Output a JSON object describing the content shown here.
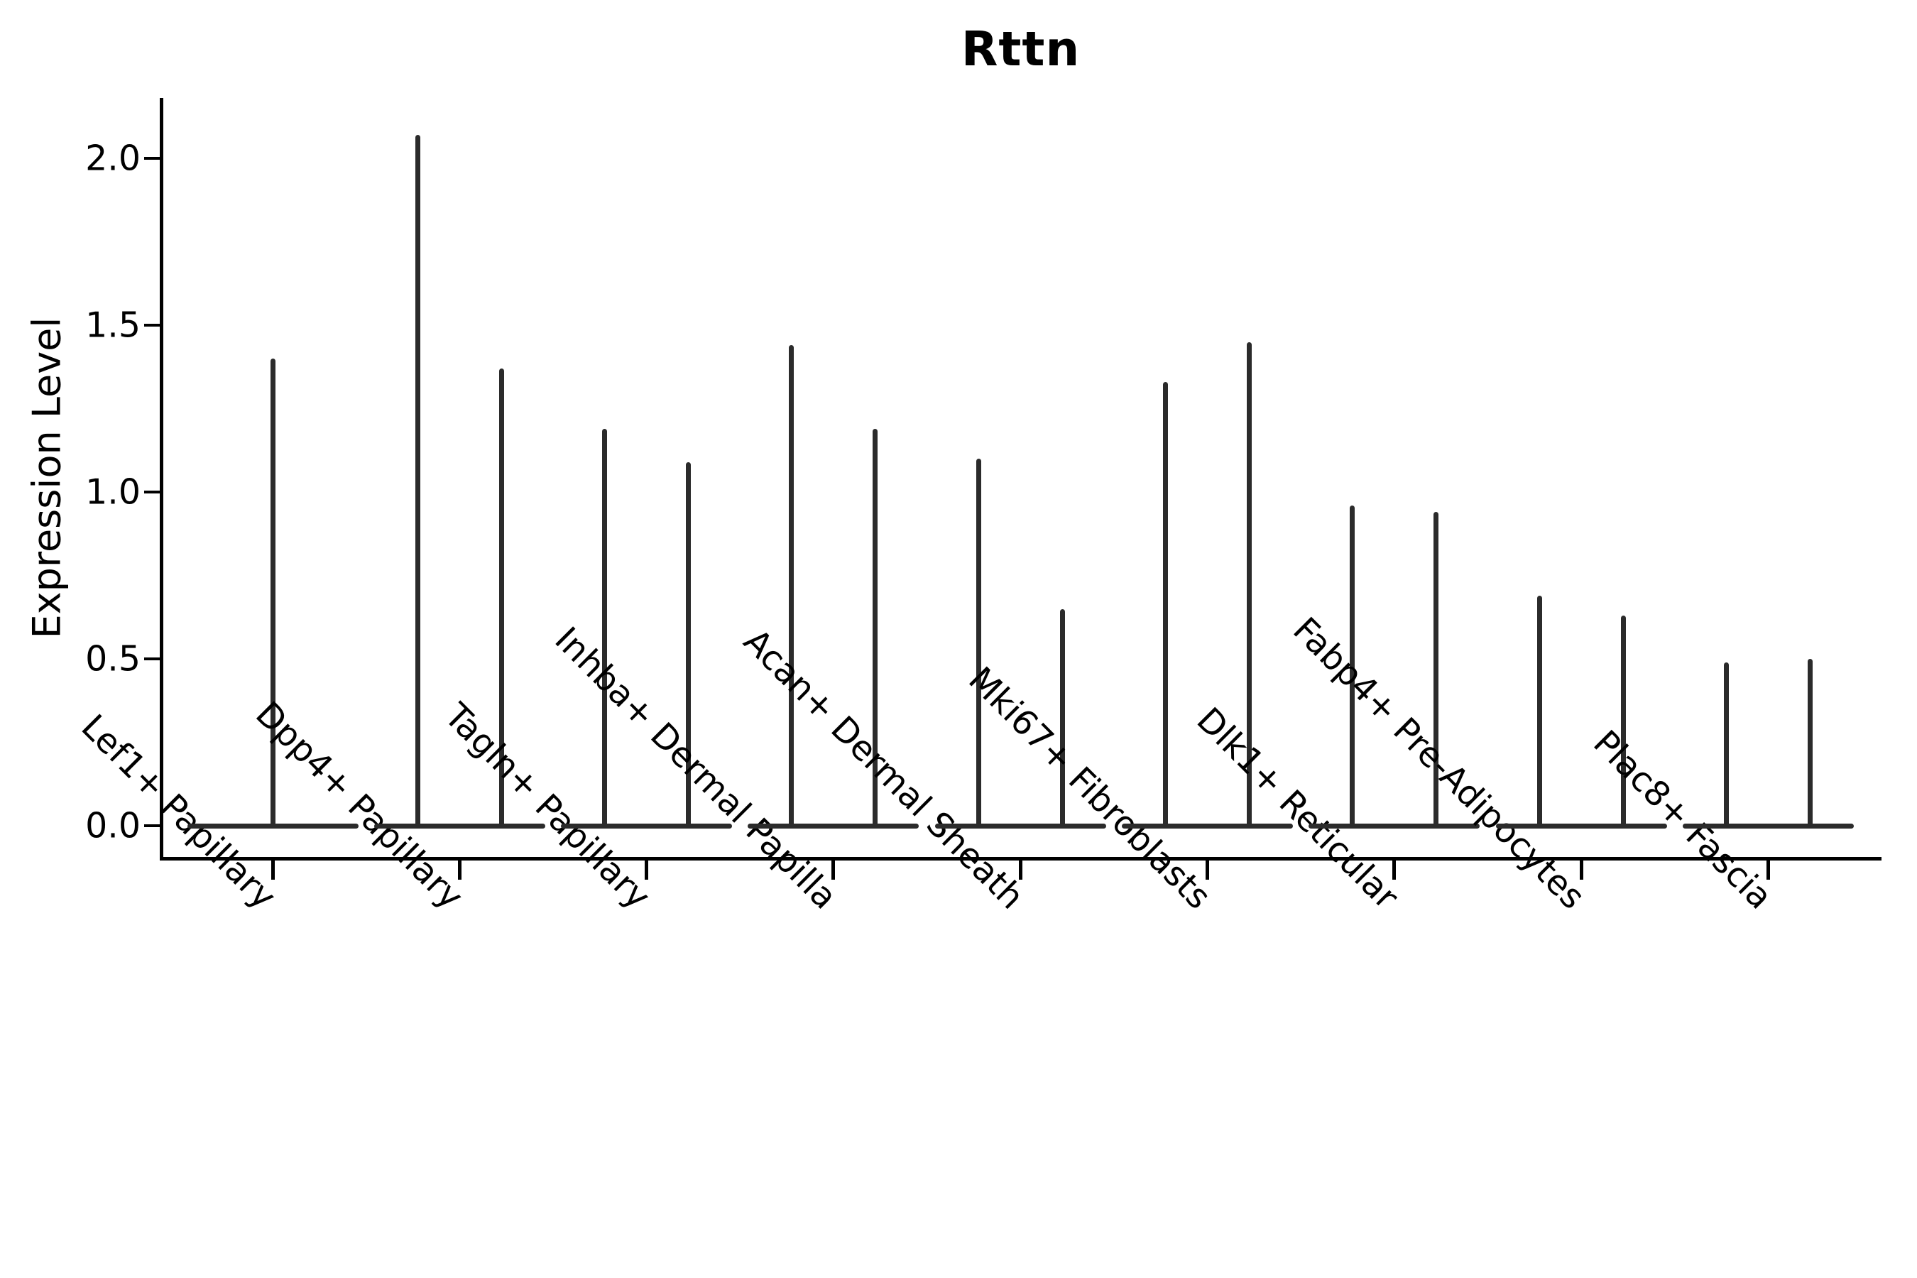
{
  "title": "Rttn",
  "chart_data": {
    "type": "violin",
    "title": "Rttn",
    "xlabel": "",
    "ylabel": "Expression Level",
    "ylim": [
      -0.09,
      2.18
    ],
    "yticks": [
      "0.0",
      "0.5",
      "1.0",
      "1.5",
      "2.0"
    ],
    "ytick_values": [
      0.0,
      0.5,
      1.0,
      1.5,
      2.0
    ],
    "grid": false,
    "legend": "none",
    "categories": [
      "Lef1+ Papillary",
      "Dpp4+ Papillary",
      "Tagln+ Papillary",
      "Inhba+ Dermal Papilla",
      "Acan+ Dermal Sheath",
      "Mki67+ Fibroblasts",
      "Dlk1+ Reticular",
      "Fabp4+ Pre-Adipocytes",
      "Plac8+ Fascia"
    ],
    "violins": [
      {
        "category": "Lef1+ Papillary",
        "spikes": [
          1.4
        ]
      },
      {
        "category": "Dpp4+ Papillary",
        "spikes": [
          2.07,
          1.37
        ]
      },
      {
        "category": "Tagln+ Papillary",
        "spikes": [
          1.19,
          1.09
        ]
      },
      {
        "category": "Inhba+ Dermal Papilla",
        "spikes": [
          1.44,
          1.19
        ]
      },
      {
        "category": "Acan+ Dermal Sheath",
        "spikes": [
          1.1,
          0.65
        ]
      },
      {
        "category": "Mki67+ Fibroblasts",
        "spikes": [
          1.33,
          1.45
        ]
      },
      {
        "category": "Dlk1+ Reticular",
        "spikes": [
          0.96,
          0.94
        ]
      },
      {
        "category": "Fabp4+ Pre-Adipocytes",
        "spikes": [
          0.69,
          0.63
        ]
      },
      {
        "category": "Plac8+ Fascia",
        "spikes": [
          0.49,
          0.5
        ]
      }
    ],
    "description": "Needle-thin violin distributions: bulk of cells at expression 0 (flat base), rare expressing cells form a thin spike up to the max value per violin",
    "colors": {
      "violin": "#2b2b2b",
      "axis": "#000000",
      "text": "#000000",
      "background": "#ffffff"
    }
  }
}
